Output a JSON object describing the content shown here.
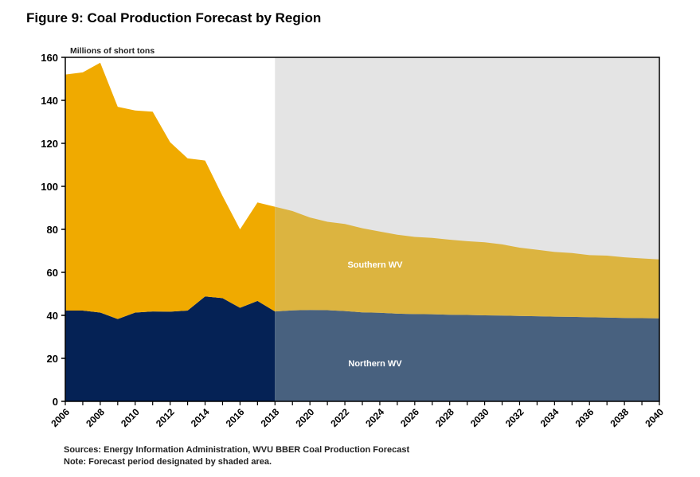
{
  "title": "Figure 9: Coal Production Forecast by Region",
  "footer": {
    "sources": "Sources: Energy Information Administration, WVU BBER Coal Production Forecast",
    "note": "Note: Forecast period designated by shaded area."
  },
  "chart_data": {
    "type": "area",
    "stacked": true,
    "ylabel": "Millions of short tons",
    "ylim": [
      0,
      160
    ],
    "yticks": [
      0,
      20,
      40,
      60,
      80,
      100,
      120,
      140,
      160
    ],
    "xlim": [
      2006,
      2040
    ],
    "xticks": [
      2006,
      2008,
      2010,
      2012,
      2014,
      2016,
      2018,
      2020,
      2022,
      2024,
      2026,
      2028,
      2030,
      2032,
      2034,
      2036,
      2038,
      2040
    ],
    "forecast_start": 2018,
    "grid": false,
    "x": [
      2006,
      2007,
      2008,
      2009,
      2010,
      2011,
      2012,
      2013,
      2014,
      2015,
      2016,
      2017,
      2018,
      2019,
      2020,
      2021,
      2022,
      2023,
      2024,
      2025,
      2026,
      2027,
      2028,
      2029,
      2030,
      2031,
      2032,
      2033,
      2034,
      2035,
      2036,
      2037,
      2038,
      2039,
      2040
    ],
    "series": [
      {
        "name": "Northern WV",
        "color": "#052255",
        "forecast_color": "#48617F",
        "values": [
          42.2,
          42.2,
          41.3,
          38.3,
          41.3,
          41.8,
          41.7,
          42.2,
          48.8,
          48.0,
          43.5,
          46.7,
          41.8,
          42.3,
          42.5,
          42.4,
          42.0,
          41.4,
          41.2,
          40.8,
          40.6,
          40.5,
          40.3,
          40.2,
          40.0,
          39.9,
          39.7,
          39.6,
          39.4,
          39.3,
          39.1,
          39.0,
          38.8,
          38.7,
          38.6
        ]
      },
      {
        "name": "Southern WV",
        "color": "#F0AA00",
        "forecast_color": "#DCB440",
        "values": [
          109.8,
          110.8,
          116.2,
          98.7,
          94.0,
          92.9,
          78.8,
          70.8,
          63.2,
          47.5,
          36.5,
          45.8,
          48.7,
          46.2,
          43.0,
          41.1,
          40.5,
          39.1,
          37.8,
          36.7,
          35.9,
          35.5,
          34.9,
          34.3,
          34.0,
          33.1,
          31.8,
          30.9,
          30.1,
          29.7,
          28.9,
          28.8,
          28.2,
          27.8,
          27.4
        ]
      }
    ],
    "forecast_shade_color": "#E4E4E4"
  }
}
